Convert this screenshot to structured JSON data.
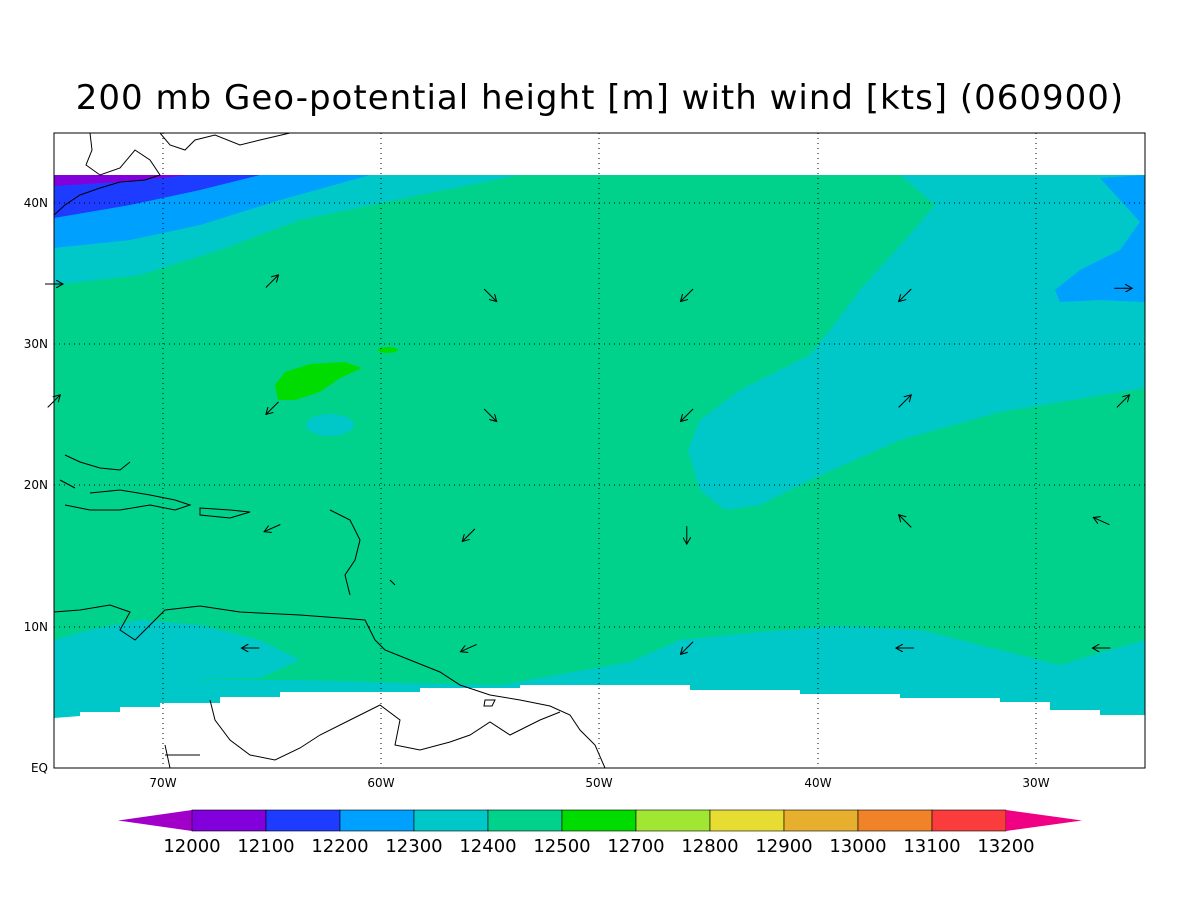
{
  "title": "200 mb Geo-potential height [m] with wind [kts] (060900)",
  "lat_labels": [
    "40N",
    "30N",
    "20N",
    "10N",
    "EQ"
  ],
  "lon_labels": [
    "70W",
    "60W",
    "50W",
    "40W",
    "30W"
  ],
  "colorbar": {
    "labels": [
      "12000",
      "12100",
      "12200",
      "12300",
      "12400",
      "12500",
      "12700",
      "12800",
      "12900",
      "13000",
      "13100",
      "13200"
    ],
    "colors": [
      "#a000c8",
      "#8200dc",
      "#1e3cff",
      "#00a0ff",
      "#00c8c8",
      "#00d28c",
      "#00dc00",
      "#a0e632",
      "#e6dc32",
      "#e6af2d",
      "#f08228",
      "#fa3c3c",
      "#f00082"
    ]
  },
  "fill_colors": {
    "background": "#00d28c",
    "light": "#00c8c8",
    "mid": "#00a0ff",
    "deep": "#1e3cff",
    "purple": "#8200dc",
    "high": "#00dc00"
  },
  "wind_vectors": [
    {
      "lon": -75,
      "lat": 34.3,
      "dir": "E"
    },
    {
      "lon": -65,
      "lat": 34.5,
      "dir": "NE"
    },
    {
      "lon": -55,
      "lat": 33.5,
      "dir": "SE"
    },
    {
      "lon": -46,
      "lat": 33.5,
      "dir": "SW"
    },
    {
      "lon": -36,
      "lat": 33.5,
      "dir": "SW"
    },
    {
      "lon": -26,
      "lat": 34,
      "dir": "E"
    },
    {
      "lon": -75,
      "lat": 26,
      "dir": "NE"
    },
    {
      "lon": -65,
      "lat": 25.5,
      "dir": "SW"
    },
    {
      "lon": -55,
      "lat": 25,
      "dir": "SE"
    },
    {
      "lon": -46,
      "lat": 25,
      "dir": "SW"
    },
    {
      "lon": -36,
      "lat": 26,
      "dir": "NE"
    },
    {
      "lon": -26,
      "lat": 26,
      "dir": "NE"
    },
    {
      "lon": -65,
      "lat": 17,
      "dir": "WSW"
    },
    {
      "lon": -56,
      "lat": 16.5,
      "dir": "SW"
    },
    {
      "lon": -46,
      "lat": 16.5,
      "dir": "S"
    },
    {
      "lon": -36,
      "lat": 17.5,
      "dir": "NW"
    },
    {
      "lon": -27,
      "lat": 17.5,
      "dir": "WNW"
    },
    {
      "lon": -66,
      "lat": 8.5,
      "dir": "W"
    },
    {
      "lon": -56,
      "lat": 8.5,
      "dir": "WSW"
    },
    {
      "lon": -46,
      "lat": 8.5,
      "dir": "SW"
    },
    {
      "lon": -36,
      "lat": 8.5,
      "dir": "W"
    },
    {
      "lon": -27,
      "lat": 8.5,
      "dir": "W"
    }
  ]
}
